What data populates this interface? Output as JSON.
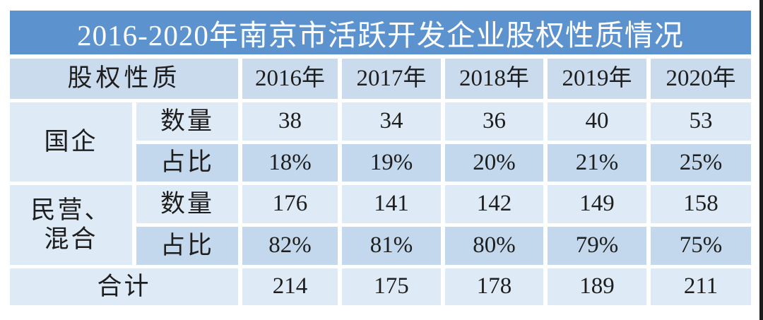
{
  "title": "2016-2020年南京市活跃开发企业股权性质情况",
  "table": {
    "header": {
      "label": "股权性质",
      "years": [
        "2016年",
        "2017年",
        "2018年",
        "2019年",
        "2020年"
      ]
    },
    "groups": [
      {
        "category": "国企",
        "rows": [
          {
            "label": "数量",
            "values": [
              "38",
              "34",
              "36",
              "40",
              "53"
            ]
          },
          {
            "label": "占比",
            "values": [
              "18%",
              "19%",
              "20%",
              "21%",
              "25%"
            ]
          }
        ]
      },
      {
        "category": "民营、\n混合",
        "rows": [
          {
            "label": "数量",
            "values": [
              "176",
              "141",
              "142",
              "149",
              "158"
            ]
          },
          {
            "label": "占比",
            "values": [
              "82%",
              "81%",
              "80%",
              "79%",
              "75%"
            ]
          }
        ]
      }
    ],
    "total": {
      "label": "合计",
      "values": [
        "214",
        "175",
        "178",
        "189",
        "211"
      ]
    }
  },
  "colors": {
    "title_bg": "#5C93CE",
    "title_text": "#FFFFFF",
    "header_bg": "#CBDBEE",
    "row_light_bg": "#DEEAF5",
    "row_dark_bg": "#C3D8EC",
    "text": "#1E1E1E",
    "gap": "#FFFFFF",
    "right_edge_strip": "#1C1C1C"
  },
  "chart_data": {
    "type": "table",
    "title": "2016-2020年南京市活跃开发企业股权性质情况",
    "columns": [
      "股权性质",
      "",
      "2016年",
      "2017年",
      "2018年",
      "2019年",
      "2020年"
    ],
    "rows": [
      [
        "国企",
        "数量",
        38,
        34,
        36,
        40,
        53
      ],
      [
        "国企",
        "占比",
        "18%",
        "19%",
        "20%",
        "21%",
        "25%"
      ],
      [
        "民营、混合",
        "数量",
        176,
        141,
        142,
        149,
        158
      ],
      [
        "民营、混合",
        "占比",
        "82%",
        "81%",
        "80%",
        "79%",
        "75%"
      ],
      [
        "合计",
        "",
        214,
        175,
        178,
        189,
        211
      ]
    ]
  }
}
